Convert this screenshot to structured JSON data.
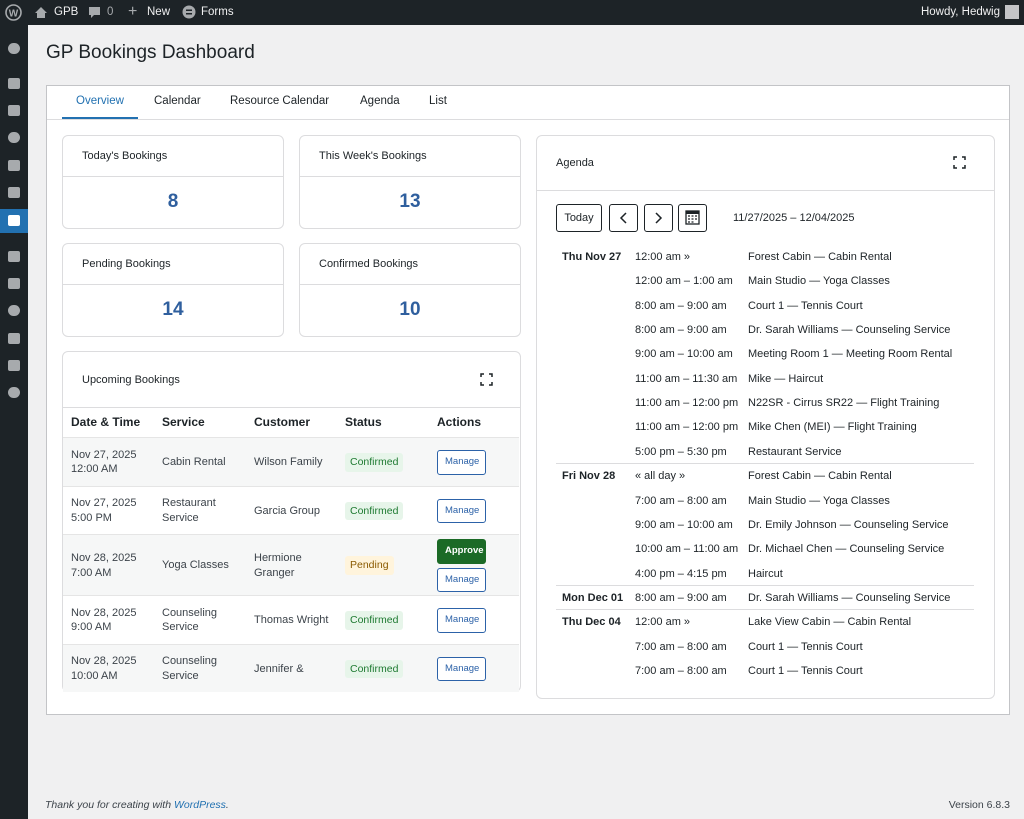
{
  "admin_bar": {
    "site": "GPB",
    "comments": "0",
    "new": "New",
    "forms": "Forms",
    "greeting": "Howdy, Hedwig"
  },
  "page": {
    "title": "GP Bookings Dashboard"
  },
  "tabs": [
    "Overview",
    "Calendar",
    "Resource Calendar",
    "Agenda",
    "List"
  ],
  "stats": [
    {
      "label": "Today's Bookings",
      "value": 8
    },
    {
      "label": "This Week's Bookings",
      "value": 13
    },
    {
      "label": "Pending Bookings",
      "value": 14
    },
    {
      "label": "Confirmed Bookings",
      "value": 10
    }
  ],
  "upcoming": {
    "title": "Upcoming Bookings",
    "columns": [
      "Date & Time",
      "Service",
      "Customer",
      "Status",
      "Actions"
    ],
    "rows": [
      {
        "date": "Nov 27, 2025",
        "time": "12:00 AM",
        "service": "Cabin Rental",
        "customer": "Wilson Family",
        "status": "Confirmed",
        "actions": [
          "Manage"
        ]
      },
      {
        "date": "Nov 27, 2025",
        "time": "5:00 PM",
        "service": "Restaurant Service",
        "customer": "Garcia Group",
        "status": "Confirmed",
        "actions": [
          "Manage"
        ]
      },
      {
        "date": "Nov 28, 2025",
        "time": "7:00 AM",
        "service": "Yoga Classes",
        "customer": "Hermione Granger",
        "status": "Pending",
        "actions": [
          "Approve",
          "Manage"
        ]
      },
      {
        "date": "Nov 28, 2025",
        "time": "9:00 AM",
        "service": "Counseling Service",
        "customer": "Thomas Wright",
        "status": "Confirmed",
        "actions": [
          "Manage"
        ]
      },
      {
        "date": "Nov 28, 2025",
        "time": "10:00 AM",
        "service": "Counseling Service",
        "customer": "Jennifer &",
        "status": "Confirmed",
        "actions": [
          "Manage"
        ]
      }
    ]
  },
  "agenda": {
    "title": "Agenda",
    "today": "Today",
    "range": "11/27/2025 – 12/04/2025",
    "days": [
      {
        "day": "Thu Nov 27",
        "events": [
          {
            "time": "12:00 am »",
            "title": "Forest Cabin — Cabin Rental"
          },
          {
            "time": "12:00 am – 1:00 am",
            "title": "Main Studio — Yoga Classes"
          },
          {
            "time": "8:00 am – 9:00 am",
            "title": "Court 1 — Tennis Court"
          },
          {
            "time": "8:00 am – 9:00 am",
            "title": "Dr. Sarah Williams — Counseling Service"
          },
          {
            "time": "9:00 am – 10:00 am",
            "title": "Meeting Room 1 — Meeting Room Rental"
          },
          {
            "time": "11:00 am – 11:30 am",
            "title": "Mike — Haircut"
          },
          {
            "time": "11:00 am – 12:00 pm",
            "title": "N22SR - Cirrus SR22 — Flight Training"
          },
          {
            "time": "11:00 am – 12:00 pm",
            "title": "Mike Chen (MEI) — Flight Training"
          },
          {
            "time": "5:00 pm – 5:30 pm",
            "title": "Restaurant Service"
          }
        ]
      },
      {
        "day": "Fri Nov 28",
        "events": [
          {
            "time": "« all day »",
            "title": "Forest Cabin — Cabin Rental"
          },
          {
            "time": "7:00 am – 8:00 am",
            "title": "Main Studio — Yoga Classes"
          },
          {
            "time": "9:00 am – 10:00 am",
            "title": "Dr. Emily Johnson — Counseling Service"
          },
          {
            "time": "10:00 am – 11:00 am",
            "title": "Dr. Michael Chen — Counseling Service"
          },
          {
            "time": "4:00 pm – 4:15 pm",
            "title": "Haircut"
          }
        ]
      },
      {
        "day": "Mon Dec 01",
        "events": [
          {
            "time": "8:00 am – 9:00 am",
            "title": "Dr. Sarah Williams — Counseling Service"
          }
        ]
      },
      {
        "day": "Thu Dec 04",
        "events": [
          {
            "time": "12:00 am »",
            "title": "Lake View Cabin — Cabin Rental"
          },
          {
            "time": "7:00 am – 8:00 am",
            "title": "Court 1 — Tennis Court"
          },
          {
            "time": "7:00 am – 8:00 am",
            "title": "Court 1 — Tennis Court"
          }
        ]
      }
    ]
  },
  "footer": {
    "thanks": "Thank you for creating with",
    "link": "WordPress",
    "period": ".",
    "version": "Version 6.8.3"
  }
}
